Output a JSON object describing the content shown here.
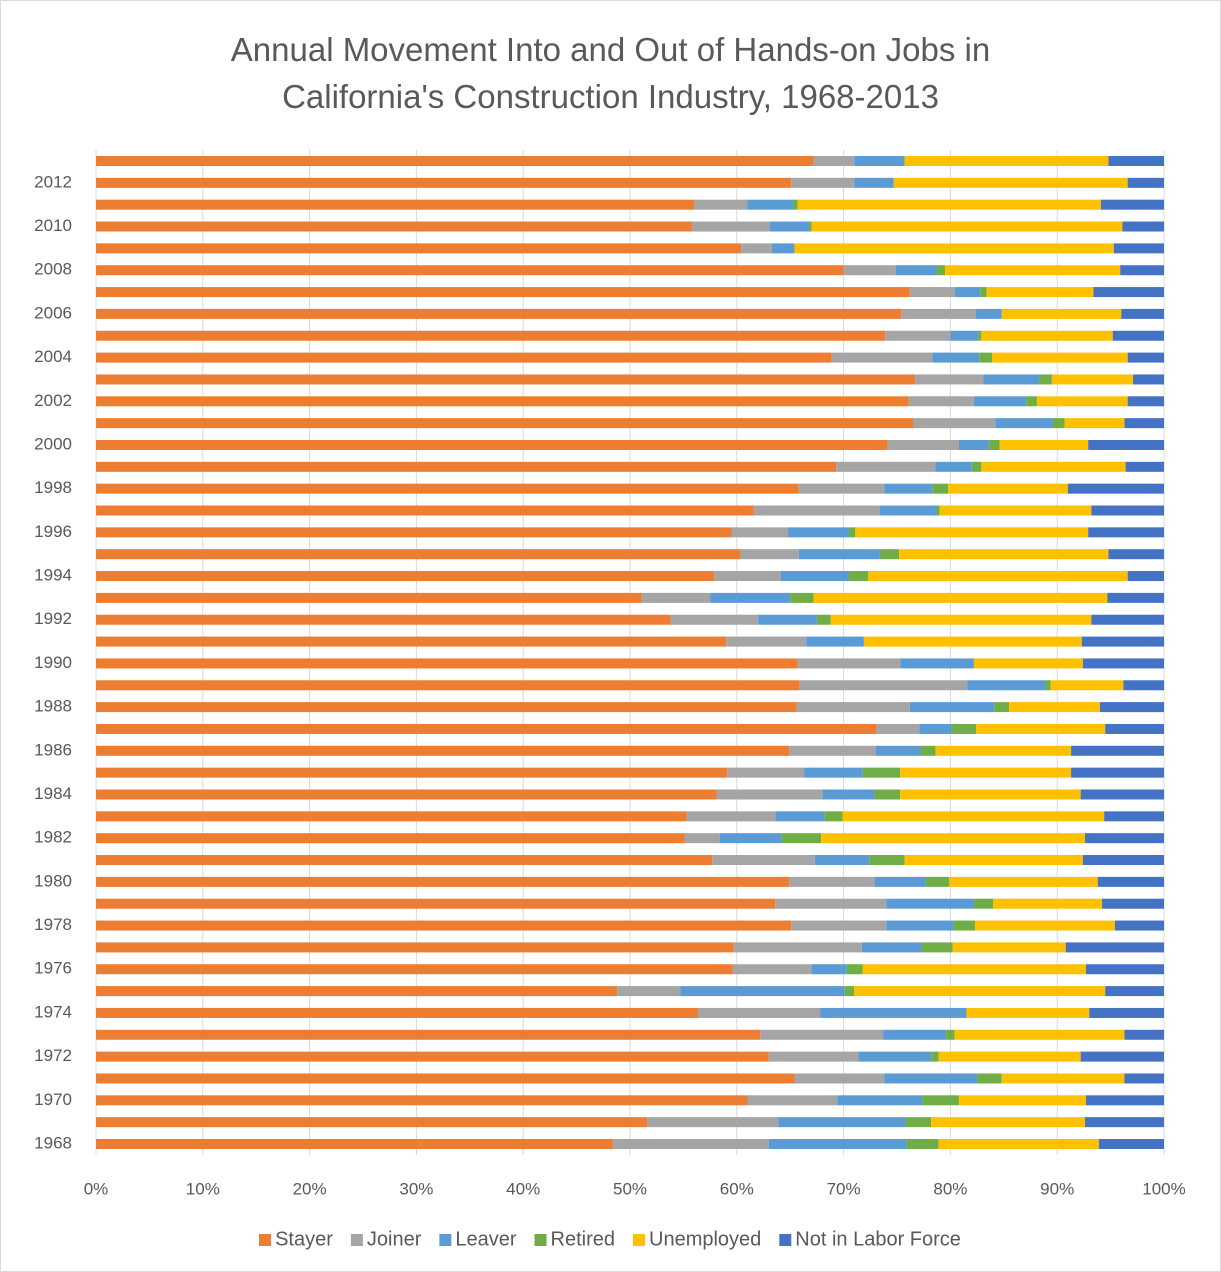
{
  "chart_data": {
    "type": "stacked_bar_horizontal",
    "title": "Annual Movement Into and Out of Hands-on Jobs in California's Construction Industry, 1968-2013",
    "categories": [
      "1968",
      null,
      "1970",
      null,
      "1972",
      null,
      "1974",
      null,
      "1976",
      null,
      "1978",
      null,
      "1980",
      null,
      "1982",
      null,
      "1984",
      null,
      "1986",
      null,
      "1988",
      null,
      "1990",
      null,
      "1992",
      null,
      "1994",
      null,
      "1996",
      null,
      "1998",
      null,
      "2000",
      null,
      "2002",
      null,
      "2004",
      null,
      "2006",
      null,
      "2008",
      null,
      "2010",
      null,
      "2012",
      null
    ],
    "series": [
      {
        "name": "Stayer",
        "color": "#ED7D31",
        "values": [
          48.4,
          51.6,
          61.0,
          65.4,
          63.0,
          62.2,
          56.4,
          48.8,
          59.6,
          59.7,
          65.1,
          63.6,
          64.9,
          57.7,
          55.1,
          55.3,
          58.1,
          59.1,
          64.9,
          73.1,
          65.6,
          65.9,
          65.7,
          59.0,
          53.8,
          51.1,
          57.9,
          60.3,
          59.5,
          61.6,
          65.8,
          69.3,
          74.1,
          76.5,
          76.1,
          76.7,
          68.9,
          73.9,
          75.4,
          76.2,
          70.0,
          60.4,
          55.8,
          56.0,
          65.1,
          67.2
        ]
      },
      {
        "name": "Joiner",
        "color": "#A5A5A5",
        "values": [
          14.6,
          12.3,
          8.4,
          8.4,
          8.4,
          11.5,
          11.4,
          5.9,
          7.4,
          12.0,
          8.9,
          10.4,
          8.0,
          9.6,
          3.3,
          8.3,
          9.9,
          7.2,
          8.1,
          4.0,
          10.6,
          15.7,
          9.6,
          7.5,
          8.2,
          6.4,
          6.2,
          5.5,
          5.3,
          11.8,
          8.0,
          9.3,
          6.7,
          7.7,
          6.1,
          6.4,
          9.4,
          6.1,
          7.0,
          4.2,
          4.9,
          2.9,
          7.3,
          5.0,
          5.9,
          3.8
        ]
      },
      {
        "name": "Leaver",
        "color": "#5B9BD5",
        "values": [
          12.9,
          11.9,
          8.0,
          8.7,
          6.8,
          5.9,
          13.7,
          15.4,
          3.3,
          5.6,
          6.3,
          8.2,
          4.8,
          5.1,
          5.8,
          4.6,
          4.9,
          5.5,
          4.2,
          3.0,
          7.9,
          7.3,
          6.9,
          5.4,
          5.5,
          7.5,
          6.4,
          7.6,
          5.7,
          5.3,
          4.5,
          3.4,
          2.8,
          5.4,
          4.9,
          5.2,
          4.4,
          2.6,
          2.4,
          2.4,
          3.8,
          2.1,
          3.7,
          4.3,
          3.7,
          4.7
        ]
      },
      {
        "name": "Retired",
        "color": "#70AD47",
        "values": [
          3.0,
          2.4,
          3.4,
          2.3,
          0.7,
          0.8,
          0,
          0.9,
          1.5,
          2.9,
          2.0,
          1.8,
          2.2,
          3.3,
          3.7,
          1.7,
          2.4,
          3.5,
          1.4,
          2.3,
          1.4,
          0.5,
          0,
          0,
          1.3,
          2.2,
          1.8,
          1.8,
          0.6,
          0.3,
          1.5,
          0.9,
          1.0,
          1.1,
          1.0,
          1.2,
          1.2,
          0.3,
          0,
          0.6,
          0.8,
          0,
          0.2,
          0.4,
          0,
          0
        ]
      },
      {
        "name": "Unemployed",
        "color": "#FFC000",
        "values": [
          15.0,
          14.4,
          11.9,
          11.5,
          13.3,
          15.9,
          11.5,
          23.5,
          20.9,
          10.6,
          13.1,
          10.2,
          13.9,
          16.7,
          24.7,
          24.5,
          16.9,
          16.0,
          12.7,
          12.1,
          8.5,
          6.8,
          10.2,
          20.4,
          24.4,
          27.5,
          24.3,
          19.6,
          21.8,
          14.2,
          11.2,
          13.5,
          8.3,
          5.6,
          8.5,
          7.6,
          12.7,
          12.3,
          11.2,
          10.0,
          16.4,
          29.9,
          29.1,
          28.4,
          21.9,
          19.1
        ]
      },
      {
        "name": "Not in Labor Force",
        "color": "#4472C4",
        "values": [
          6.1,
          7.4,
          7.3,
          3.7,
          7.8,
          3.7,
          7.0,
          5.5,
          7.3,
          9.2,
          4.6,
          5.8,
          6.2,
          7.6,
          7.4,
          5.6,
          7.8,
          8.7,
          8.7,
          5.5,
          6.0,
          3.8,
          7.6,
          7.7,
          6.8,
          5.3,
          3.4,
          5.2,
          7.1,
          6.8,
          9.0,
          3.6,
          7.1,
          3.7,
          3.4,
          2.9,
          3.4,
          4.8,
          4.0,
          6.6,
          4.1,
          4.7,
          3.9,
          5.9,
          3.4,
          5.2
        ]
      }
    ],
    "xlim": [
      0,
      100
    ],
    "xticks": [
      {
        "value": 0,
        "label": "0%"
      },
      {
        "value": 10,
        "label": "10%"
      },
      {
        "value": 20,
        "label": "20%"
      },
      {
        "value": 30,
        "label": "30%"
      },
      {
        "value": 40,
        "label": "40%"
      },
      {
        "value": 50,
        "label": "50%"
      },
      {
        "value": 60,
        "label": "60%"
      },
      {
        "value": 70,
        "label": "70%"
      },
      {
        "value": 80,
        "label": "80%"
      },
      {
        "value": 90,
        "label": "90%"
      },
      {
        "value": 100,
        "label": "100%"
      }
    ],
    "grid": true,
    "legend": "bottom"
  }
}
